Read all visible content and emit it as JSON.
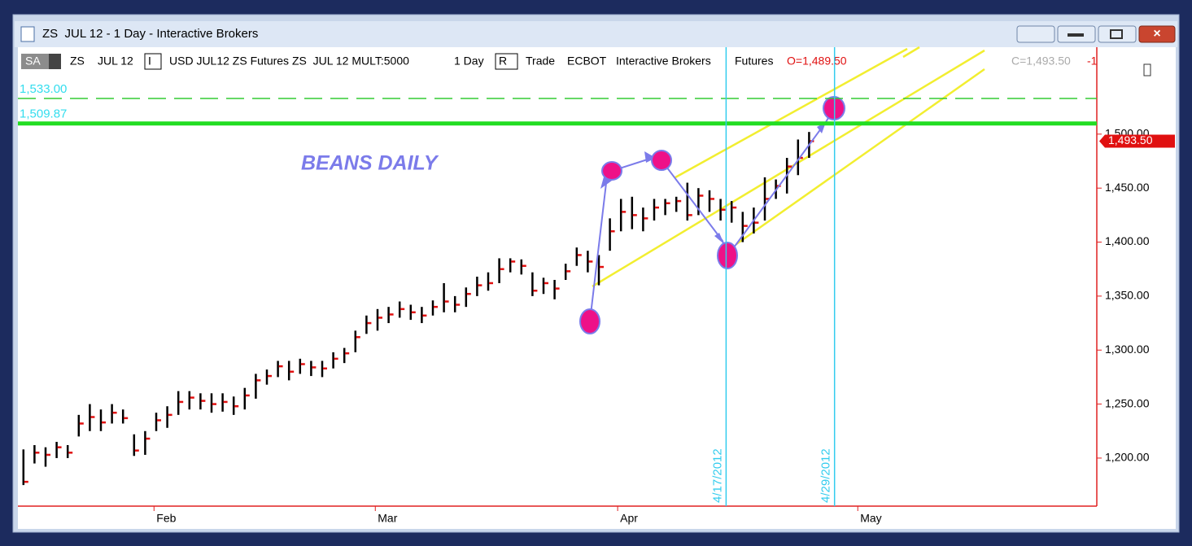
{
  "window": {
    "title": "ZS  JUL 12 - 1 Day - Interactive Brokers",
    "toolbar": [
      "SA",
      "ZS",
      "JUL 12",
      "I",
      "USD JUL12 ZS Futures ZS  JUL 12 MULT:5000",
      "1 Day",
      "R",
      "Trade",
      "ECBOT",
      "Interactive Brokers",
      "Futures",
      "O=1,489.50",
      "C=1,493.50",
      "-1"
    ]
  },
  "chart_data": {
    "type": "hlc",
    "annotation": "BEANS DAILY",
    "categories": [
      null,
      null,
      null,
      null,
      null,
      null,
      null,
      null,
      null,
      null,
      null,
      null,
      null,
      null,
      null,
      null,
      null,
      null,
      null,
      null,
      null,
      null,
      null,
      null,
      null,
      null,
      null,
      null,
      null,
      null,
      null,
      null,
      null,
      null,
      null,
      null,
      null,
      null,
      null,
      null,
      null,
      null,
      null,
      null,
      null,
      null,
      null,
      null,
      null,
      null,
      null,
      null,
      null,
      null,
      null,
      null,
      null,
      null,
      null,
      null,
      null,
      null,
      null,
      null,
      null,
      null,
      null,
      null,
      null,
      null,
      null,
      null
    ],
    "high": [
      1208,
      1212,
      1210,
      1215,
      1212,
      1240,
      1250,
      1245,
      1250,
      1245,
      1222,
      1225,
      1242,
      1248,
      1262,
      1262,
      1260,
      1260,
      1260,
      1257,
      1265,
      1278,
      1282,
      1290,
      1290,
      1292,
      1290,
      1290,
      1298,
      1302,
      1318,
      1332,
      1338,
      1340,
      1345,
      1342,
      1340,
      1346,
      1362,
      1350,
      1358,
      1368,
      1372,
      1385,
      1385,
      1384,
      1372,
      1367,
      1365,
      1380,
      1395,
      1392,
      1388,
      1422,
      1440,
      1442,
      1432,
      1440,
      1440,
      1442,
      1455,
      1450,
      1448,
      1440,
      1438,
      1428,
      1432,
      1460,
      1458,
      1478,
      1495,
      1502
    ],
    "low": [
      1175,
      1195,
      1192,
      1200,
      1200,
      1220,
      1225,
      1225,
      1232,
      1232,
      1202,
      1203,
      1225,
      1228,
      1240,
      1245,
      1245,
      1242,
      1243,
      1240,
      1245,
      1255,
      1268,
      1275,
      1272,
      1278,
      1276,
      1275,
      1283,
      1288,
      1298,
      1315,
      1318,
      1325,
      1330,
      1328,
      1325,
      1332,
      1335,
      1335,
      1340,
      1350,
      1355,
      1362,
      1372,
      1370,
      1350,
      1352,
      1347,
      1365,
      1378,
      1372,
      1360,
      1392,
      1410,
      1412,
      1410,
      1420,
      1425,
      1428,
      1420,
      1425,
      1428,
      1420,
      1418,
      1400,
      1408,
      1420,
      1440,
      1445,
      1462,
      1478
    ],
    "close": [
      1178,
      1205,
      1203,
      1210,
      1205,
      1232,
      1238,
      1233,
      1242,
      1237,
      1207,
      1218,
      1235,
      1240,
      1252,
      1256,
      1253,
      1250,
      1252,
      1248,
      1258,
      1272,
      1276,
      1285,
      1280,
      1287,
      1284,
      1283,
      1292,
      1297,
      1312,
      1325,
      1330,
      1333,
      1338,
      1335,
      1332,
      1340,
      1345,
      1342,
      1352,
      1360,
      1362,
      1375,
      1382,
      1378,
      1355,
      1362,
      1357,
      1373,
      1388,
      1382,
      1377,
      1410,
      1428,
      1425,
      1422,
      1432,
      1436,
      1438,
      1425,
      1443,
      1440,
      1430,
      1432,
      1415,
      1418,
      1440,
      1452,
      1470,
      1478,
      1493.5
    ],
    "bar_color": "#000000",
    "close_color": "#e01010",
    "xlim": [
      -0.5,
      97
    ],
    "xticks": [
      {
        "value": 11.8,
        "label": "Feb"
      },
      {
        "value": 31.8,
        "label": "Mar"
      },
      {
        "value": 53.7,
        "label": "Apr"
      },
      {
        "value": 75.4,
        "label": "May"
      }
    ],
    "ylim": [
      1155.5,
      1580.5
    ],
    "yticks": [
      {
        "value": 1200,
        "label": "1,200.00"
      },
      {
        "value": 1250,
        "label": "1,250.00"
      },
      {
        "value": 1300,
        "label": "1,300.00"
      },
      {
        "value": 1350,
        "label": "1,350.00"
      },
      {
        "value": 1400,
        "label": "1,400.00"
      },
      {
        "value": 1450,
        "label": "1,450.00"
      },
      {
        "value": 1500,
        "label": "1,500.00"
      }
    ],
    "grid": false,
    "hlines": [
      {
        "value": 1533,
        "label": "1,533.00",
        "style": "dashed",
        "color": "#33cc33"
      },
      {
        "value": 1509.87,
        "label": "1,509.87",
        "style": "solid",
        "color": "#22dd22"
      }
    ],
    "vlines": [
      {
        "x": 63.5,
        "label": "4/17/2012",
        "color": "#33ccee"
      },
      {
        "x": 73.3,
        "label": "4/29/2012",
        "color": "#33ccee"
      }
    ],
    "last_price": {
      "value": 1493.5,
      "label": "1,493.50"
    }
  }
}
